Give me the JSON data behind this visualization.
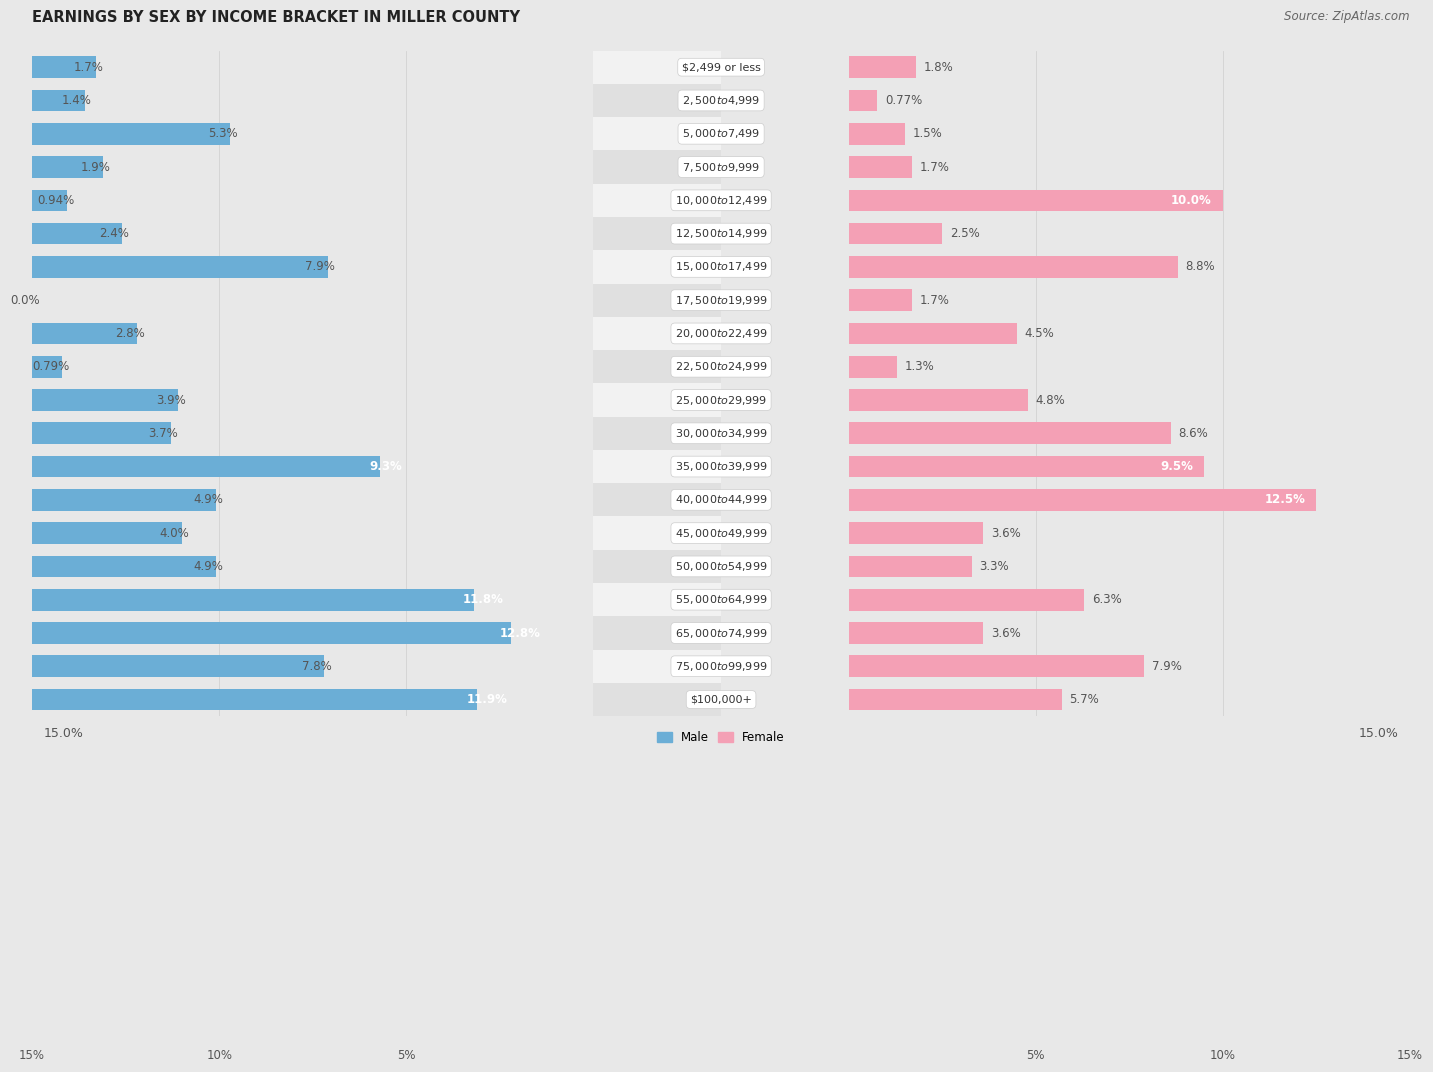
{
  "title": "EARNINGS BY SEX BY INCOME BRACKET IN MILLER COUNTY",
  "source": "Source: ZipAtlas.com",
  "categories": [
    "$2,499 or less",
    "$2,500 to $4,999",
    "$5,000 to $7,499",
    "$7,500 to $9,999",
    "$10,000 to $12,499",
    "$12,500 to $14,999",
    "$15,000 to $17,499",
    "$17,500 to $19,999",
    "$20,000 to $22,499",
    "$22,500 to $24,999",
    "$25,000 to $29,999",
    "$30,000 to $34,999",
    "$35,000 to $39,999",
    "$40,000 to $44,999",
    "$45,000 to $49,999",
    "$50,000 to $54,999",
    "$55,000 to $64,999",
    "$65,000 to $74,999",
    "$75,000 to $99,999",
    "$100,000+"
  ],
  "male_values": [
    1.7,
    1.4,
    5.3,
    1.9,
    0.94,
    2.4,
    7.9,
    0.0,
    2.8,
    0.79,
    3.9,
    3.7,
    9.3,
    4.9,
    4.0,
    4.9,
    11.8,
    12.8,
    7.8,
    11.9
  ],
  "female_values": [
    1.8,
    0.77,
    1.5,
    1.7,
    10.0,
    2.5,
    8.8,
    1.7,
    4.5,
    1.3,
    4.8,
    8.6,
    9.5,
    12.5,
    3.6,
    3.3,
    6.3,
    3.6,
    7.9,
    5.7
  ],
  "male_color": "#6baed6",
  "female_color": "#f4a0b5",
  "male_label": "Male",
  "female_label": "Female",
  "xlim": 15.0,
  "background_color": "#e8e8e8",
  "row_color_odd": "#f2f2f2",
  "row_color_even": "#e0e0e0",
  "bar_bg_color": "#dcdcdc",
  "pill_color": "#ffffff",
  "pill_text_color": "#333333",
  "title_fontsize": 10.5,
  "source_fontsize": 8.5,
  "label_fontsize": 8.0,
  "value_fontsize": 8.5,
  "axis_tick_fontsize": 9.0,
  "inside_label_color": "#ffffff",
  "outside_label_color": "#555555"
}
